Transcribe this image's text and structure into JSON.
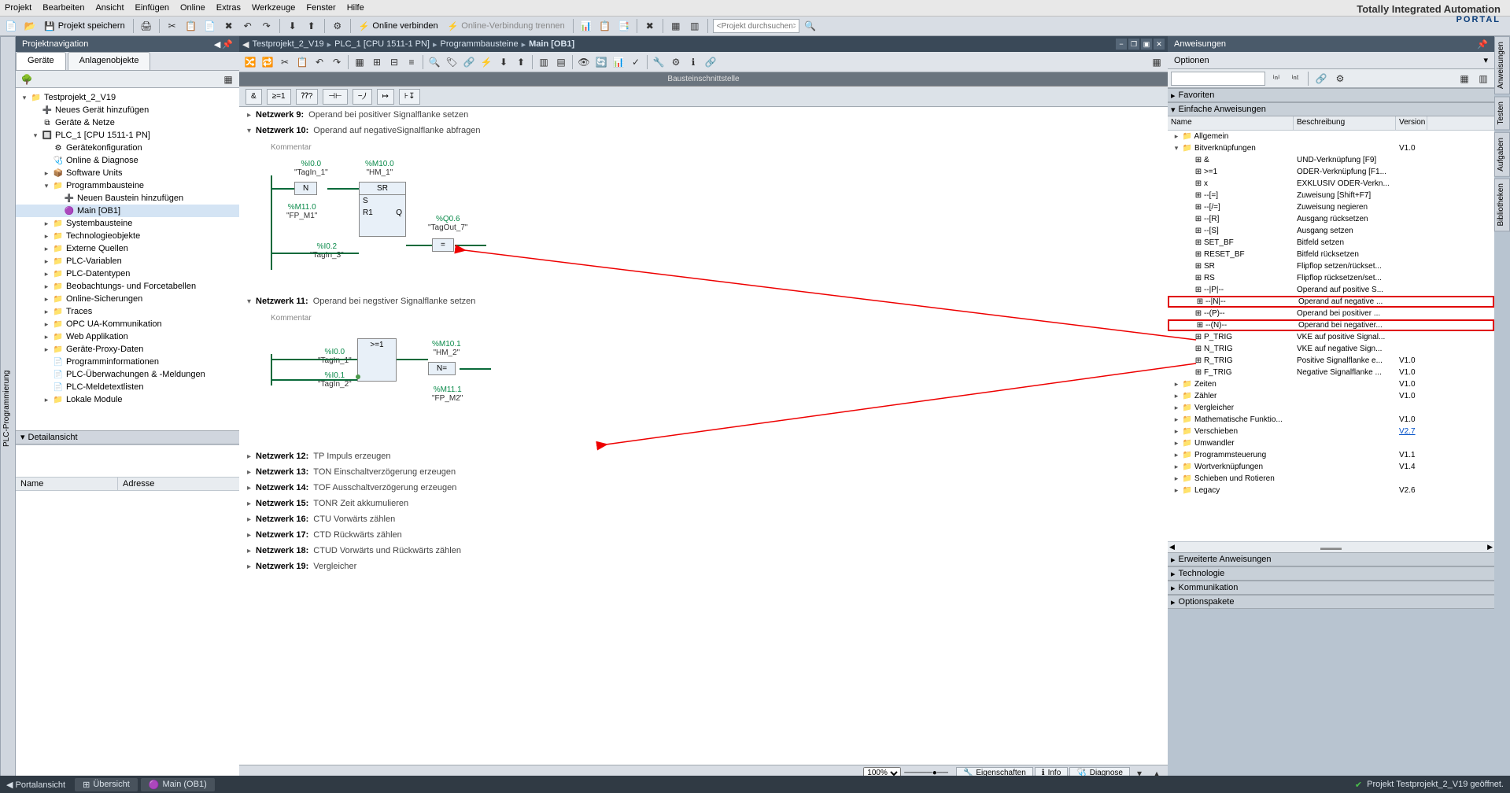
{
  "brand": {
    "line1": "Totally Integrated Automation",
    "line2": "PORTAL"
  },
  "menu": [
    "Projekt",
    "Bearbeiten",
    "Ansicht",
    "Einfügen",
    "Online",
    "Extras",
    "Werkzeuge",
    "Fenster",
    "Hilfe"
  ],
  "toolbar1": {
    "save": "Projekt speichern",
    "connect": "Online verbinden",
    "disconnect": "Online-Verbindung trennen",
    "search_ph": "<Projekt durchsuchen>"
  },
  "left": {
    "title": "Projektnavigation",
    "tabs": [
      "Geräte",
      "Anlagenobjekte"
    ],
    "tree": [
      {
        "d": 0,
        "t": "▾",
        "i": "📁",
        "l": "Testprojekt_2_V19"
      },
      {
        "d": 1,
        "t": "",
        "i": "➕",
        "l": "Neues Gerät hinzufügen"
      },
      {
        "d": 1,
        "t": "",
        "i": "⧉",
        "l": "Geräte & Netze"
      },
      {
        "d": 1,
        "t": "▾",
        "i": "🔲",
        "l": "PLC_1 [CPU 1511-1 PN]"
      },
      {
        "d": 2,
        "t": "",
        "i": "⚙",
        "l": "Gerätekonfiguration"
      },
      {
        "d": 2,
        "t": "",
        "i": "🩺",
        "l": "Online & Diagnose"
      },
      {
        "d": 2,
        "t": "▸",
        "i": "📦",
        "l": "Software Units"
      },
      {
        "d": 2,
        "t": "▾",
        "i": "📁",
        "l": "Programmbausteine"
      },
      {
        "d": 3,
        "t": "",
        "i": "➕",
        "l": "Neuen Baustein hinzufügen"
      },
      {
        "d": 3,
        "t": "",
        "i": "🟣",
        "l": "Main [OB1]",
        "sel": true
      },
      {
        "d": 2,
        "t": "▸",
        "i": "📁",
        "l": "Systembausteine"
      },
      {
        "d": 2,
        "t": "▸",
        "i": "📁",
        "l": "Technologieobjekte"
      },
      {
        "d": 2,
        "t": "▸",
        "i": "📁",
        "l": "Externe Quellen"
      },
      {
        "d": 2,
        "t": "▸",
        "i": "📁",
        "l": "PLC-Variablen"
      },
      {
        "d": 2,
        "t": "▸",
        "i": "📁",
        "l": "PLC-Datentypen"
      },
      {
        "d": 2,
        "t": "▸",
        "i": "📁",
        "l": "Beobachtungs- und Forcetabellen"
      },
      {
        "d": 2,
        "t": "▸",
        "i": "📁",
        "l": "Online-Sicherungen"
      },
      {
        "d": 2,
        "t": "▸",
        "i": "📁",
        "l": "Traces"
      },
      {
        "d": 2,
        "t": "▸",
        "i": "📁",
        "l": "OPC UA-Kommunikation"
      },
      {
        "d": 2,
        "t": "▸",
        "i": "📁",
        "l": "Web Applikation"
      },
      {
        "d": 2,
        "t": "▸",
        "i": "📁",
        "l": "Geräte-Proxy-Daten"
      },
      {
        "d": 2,
        "t": "",
        "i": "📄",
        "l": "Programminformationen"
      },
      {
        "d": 2,
        "t": "",
        "i": "📄",
        "l": "PLC-Überwachungen & -Meldungen"
      },
      {
        "d": 2,
        "t": "",
        "i": "📄",
        "l": "PLC-Meldetextlisten"
      },
      {
        "d": 2,
        "t": "▸",
        "i": "📁",
        "l": "Lokale Module"
      }
    ],
    "detail_title": "Detailansicht",
    "detail_cols": [
      "Name",
      "Adresse"
    ]
  },
  "mid": {
    "breadcrumb": [
      "Testprojekt_2_V19",
      "PLC_1 [CPU 1511-1 PN]",
      "Programmbausteine",
      "Main [OB1]"
    ],
    "iface": "Bausteinschnittstelle",
    "lad_btns": [
      "&",
      "≥=1",
      "⁇?",
      "⊣⊢",
      "−⵰",
      "↦",
      "⊦↧"
    ],
    "networks": [
      {
        "n": "Netzwerk 9:",
        "t": "Operand bei positiver Signalflanke setzen",
        "open": false
      },
      {
        "n": "Netzwerk 10:",
        "t": "Operand auf negativeSignalflanke abfragen",
        "open": true,
        "body": "n10"
      },
      {
        "n": "Netzwerk 11:",
        "t": "Operand bei negstiver Signalflanke setzen",
        "open": true,
        "body": "n11"
      },
      {
        "n": "Netzwerk 12:",
        "t": "TP Impuls erzeugen",
        "open": false
      },
      {
        "n": "Netzwerk 13:",
        "t": "TON Einschaltverzögerung erzeugen",
        "open": false
      },
      {
        "n": "Netzwerk 14:",
        "t": "TOF Ausschaltverzögerung erzeugen",
        "open": false
      },
      {
        "n": "Netzwerk 15:",
        "t": "TONR Zeit akkumulieren",
        "open": false
      },
      {
        "n": "Netzwerk 16:",
        "t": "CTU Vorwärts zählen",
        "open": false
      },
      {
        "n": "Netzwerk 17:",
        "t": "CTD Rückwärts zählen",
        "open": false
      },
      {
        "n": "Netzwerk 18:",
        "t": "CTUD Vorwärts und Rückwärts zählen",
        "open": false
      },
      {
        "n": "Netzwerk 19:",
        "t": "Vergleicher",
        "open": false
      }
    ],
    "n10": {
      "comment": "Kommentar",
      "sigs": {
        "i1": {
          "a": "%I0.0",
          "s": "\"TagIn_1\""
        },
        "m1": {
          "a": "%M10.0",
          "s": "\"HM_1\""
        },
        "fp": {
          "a": "%M11.0",
          "s": "\"FP_M1\""
        },
        "i3": {
          "a": "%I0.2",
          "s": "\"TagIn_3\""
        },
        "q": {
          "a": "%Q0.6",
          "s": "\"TagOut_7\""
        }
      },
      "blk_n": "N",
      "blk_sr": "SR",
      "blk_eq": "="
    },
    "n11": {
      "comment": "Kommentar",
      "sigs": {
        "i1": {
          "a": "%I0.0",
          "s": "\"TagIn_1\""
        },
        "i2": {
          "a": "%I0.1",
          "s": "\"TagIn_2\""
        },
        "m2": {
          "a": "%M10.1",
          "s": "\"HM_2\""
        },
        "fp2": {
          "a": "%M11.1",
          "s": "\"FP_M2\""
        }
      },
      "blk_or": ">=1",
      "blk_n": "N="
    },
    "zoom": "100%",
    "footer_tabs": [
      {
        "i": "🔧",
        "l": "Eigenschaften"
      },
      {
        "i": "ℹ",
        "l": "Info"
      },
      {
        "i": "🩺",
        "l": "Diagnose"
      }
    ]
  },
  "right": {
    "title": "Anweisungen",
    "options": "Optionen",
    "sections": [
      "Favoriten",
      "Einfache Anweisungen",
      "Erweiterte Anweisungen",
      "Technologie",
      "Kommunikation",
      "Optionspakete"
    ],
    "cols": [
      "Name",
      "Beschreibung",
      "Version"
    ],
    "rows": [
      {
        "d": 0,
        "t": "▸",
        "i": "📁",
        "n": "Allgemein",
        "b": "",
        "v": ""
      },
      {
        "d": 0,
        "t": "▾",
        "i": "📁",
        "n": "Bitverknüpfungen",
        "b": "",
        "v": "V1.0"
      },
      {
        "d": 1,
        "t": "",
        "i": "⊞",
        "n": "&",
        "b": "UND-Verknüpfung [F9]",
        "v": ""
      },
      {
        "d": 1,
        "t": "",
        "i": "⊞",
        "n": ">=1",
        "b": "ODER-Verknüpfung [F1...",
        "v": ""
      },
      {
        "d": 1,
        "t": "",
        "i": "⊞",
        "n": "x",
        "b": "EXKLUSIV ODER-Verkn...",
        "v": ""
      },
      {
        "d": 1,
        "t": "",
        "i": "⊞",
        "n": "--[=]",
        "b": "Zuweisung [Shift+F7]",
        "v": ""
      },
      {
        "d": 1,
        "t": "",
        "i": "⊞",
        "n": "--[/=]",
        "b": "Zuweisung negieren",
        "v": ""
      },
      {
        "d": 1,
        "t": "",
        "i": "⊞",
        "n": "--[R]",
        "b": "Ausgang rücksetzen",
        "v": ""
      },
      {
        "d": 1,
        "t": "",
        "i": "⊞",
        "n": "--[S]",
        "b": "Ausgang setzen",
        "v": ""
      },
      {
        "d": 1,
        "t": "",
        "i": "⊞",
        "n": "SET_BF",
        "b": "Bitfeld setzen",
        "v": ""
      },
      {
        "d": 1,
        "t": "",
        "i": "⊞",
        "n": "RESET_BF",
        "b": "Bitfeld rücksetzen",
        "v": ""
      },
      {
        "d": 1,
        "t": "",
        "i": "⊞",
        "n": "SR",
        "b": "Flipflop setzen/rückset...",
        "v": ""
      },
      {
        "d": 1,
        "t": "",
        "i": "⊞",
        "n": "RS",
        "b": "Flipflop rücksetzen/set...",
        "v": ""
      },
      {
        "d": 1,
        "t": "",
        "i": "⊞",
        "n": "--|P|--",
        "b": "Operand auf positive S...",
        "v": ""
      },
      {
        "d": 1,
        "t": "",
        "i": "⊞",
        "n": "--|N|--",
        "b": "Operand auf negative ...",
        "v": "",
        "hl": true
      },
      {
        "d": 1,
        "t": "",
        "i": "⊞",
        "n": "--(P)--",
        "b": "Operand bei positiver ...",
        "v": ""
      },
      {
        "d": 1,
        "t": "",
        "i": "⊞",
        "n": "--(N)--",
        "b": "Operand bei negativer...",
        "v": "",
        "hl": true
      },
      {
        "d": 1,
        "t": "",
        "i": "⊞",
        "n": "P_TRIG",
        "b": "VKE auf positive Signal...",
        "v": ""
      },
      {
        "d": 1,
        "t": "",
        "i": "⊞",
        "n": "N_TRIG",
        "b": "VKE auf negative Sign...",
        "v": ""
      },
      {
        "d": 1,
        "t": "",
        "i": "⊞",
        "n": "R_TRIG",
        "b": "Positive Signalflanke e...",
        "v": "V1.0"
      },
      {
        "d": 1,
        "t": "",
        "i": "⊞",
        "n": "F_TRIG",
        "b": "Negative Signalflanke ...",
        "v": "V1.0"
      },
      {
        "d": 0,
        "t": "▸",
        "i": "📁",
        "n": "Zeiten",
        "b": "",
        "v": "V1.0"
      },
      {
        "d": 0,
        "t": "▸",
        "i": "📁",
        "n": "Zähler",
        "b": "",
        "v": "V1.0"
      },
      {
        "d": 0,
        "t": "▸",
        "i": "📁",
        "n": "Vergleicher",
        "b": "",
        "v": ""
      },
      {
        "d": 0,
        "t": "▸",
        "i": "📁",
        "n": "Mathematische Funktio...",
        "b": "",
        "v": "V1.0"
      },
      {
        "d": 0,
        "t": "▸",
        "i": "📁",
        "n": "Verschieben",
        "b": "",
        "v": "V2.7",
        "link": true
      },
      {
        "d": 0,
        "t": "▸",
        "i": "📁",
        "n": "Umwandler",
        "b": "",
        "v": ""
      },
      {
        "d": 0,
        "t": "▸",
        "i": "📁",
        "n": "Programmsteuerung",
        "b": "",
        "v": "V1.1"
      },
      {
        "d": 0,
        "t": "▸",
        "i": "📁",
        "n": "Wortverknüpfungen",
        "b": "",
        "v": "V1.4"
      },
      {
        "d": 0,
        "t": "▸",
        "i": "📁",
        "n": "Schieben und Rotieren",
        "b": "",
        "v": ""
      },
      {
        "d": 0,
        "t": "▸",
        "i": "📁",
        "n": "Legacy",
        "b": "",
        "v": "V2.6"
      }
    ]
  },
  "status": {
    "portal": "Portalansicht",
    "tabs": [
      {
        "i": "⊞",
        "l": "Übersicht"
      },
      {
        "i": "🟣",
        "l": "Main (OB1)"
      }
    ],
    "msg": "Projekt Testprojekt_2_V19 geöffnet."
  }
}
